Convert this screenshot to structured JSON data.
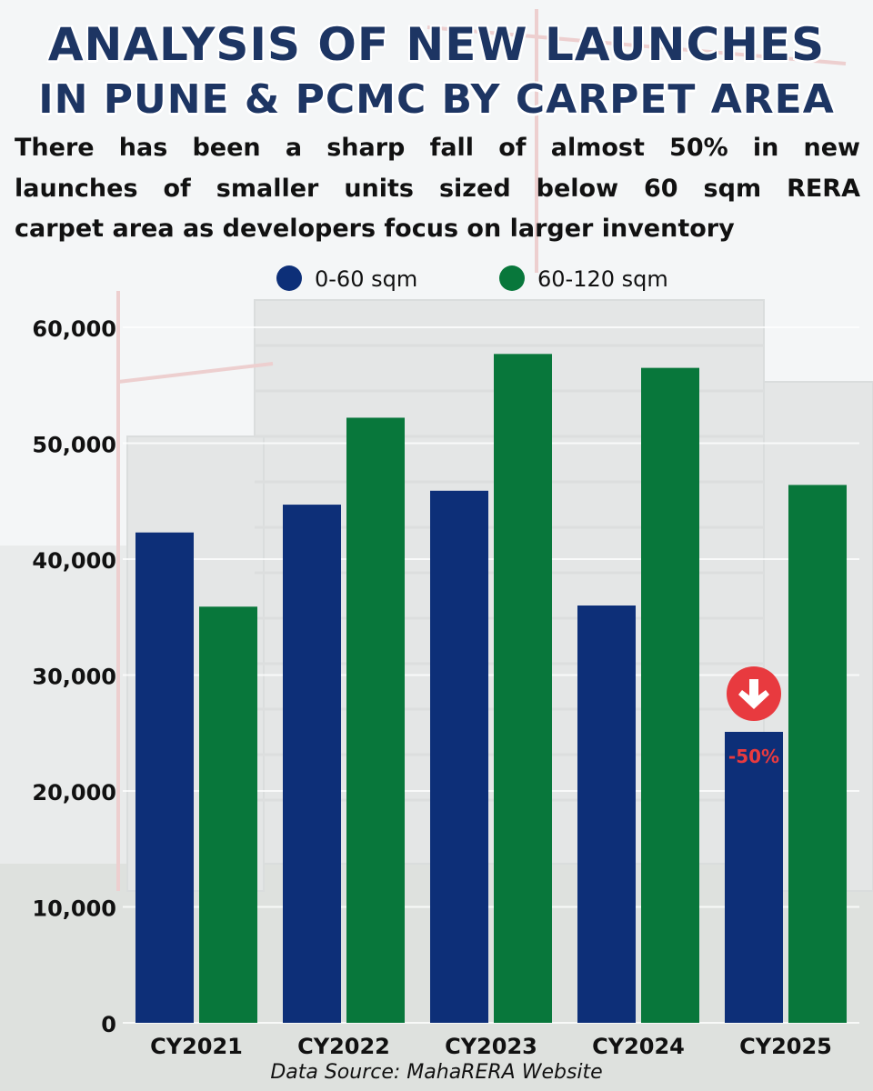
{
  "title": {
    "line1": "ANALYSIS OF NEW LAUNCHES",
    "line2": "IN PUNE & PCMC BY CARPET AREA"
  },
  "subtitle": {
    "line1": "There has been a sharp fall of almost 50% in new",
    "line2": "launches of smaller units sized below 60 sqm RERA",
    "line3": "carpet area as developers focus on larger inventory"
  },
  "source": "Data Source: MahaRERA Website",
  "colors": {
    "series1": "#0d2f78",
    "series2": "#08773b",
    "badge": "#e83a3f",
    "annotation": "#e83a3f",
    "title": "#1d3563"
  },
  "chart_data": {
    "type": "bar",
    "categories": [
      "CY2021",
      "CY2022",
      "CY2023",
      "CY2024",
      "CY2025"
    ],
    "series": [
      {
        "name": "0-60 sqm",
        "values": [
          42300,
          44700,
          45900,
          36000,
          25100
        ]
      },
      {
        "name": "60-120 sqm",
        "values": [
          35900,
          52200,
          57700,
          56500,
          46400
        ]
      }
    ],
    "yticks": [
      "0",
      "10,000",
      "20,000",
      "30,000",
      "40,000",
      "50,000",
      "60,000"
    ],
    "ylim": [
      0,
      60000
    ],
    "ytick_step": 10000,
    "grid": true,
    "legend_position": "top-center",
    "annotation": {
      "text": "-50%",
      "category": "CY2025",
      "series": "0-60 sqm",
      "icon": "down-arrow-circle-icon"
    }
  }
}
